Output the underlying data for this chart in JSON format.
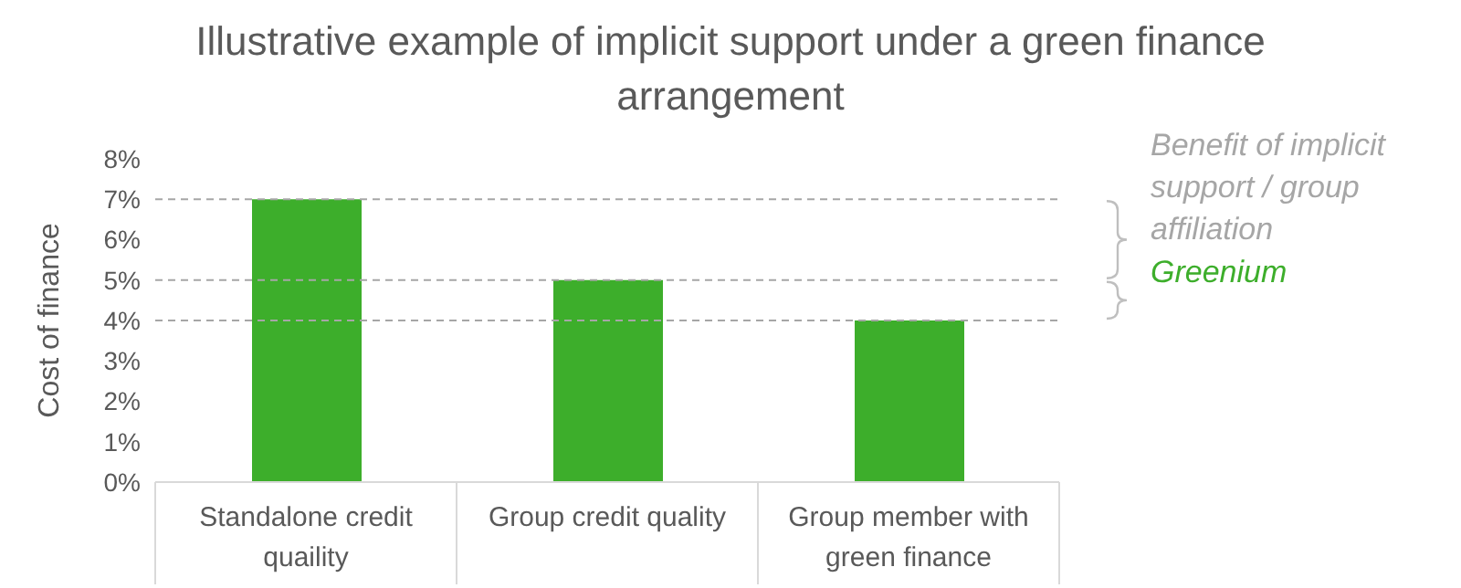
{
  "chart_data": {
    "type": "bar",
    "title": "Illustrative example of implicit support under a green finance arrangement",
    "ylabel": "Cost of finance",
    "categories": [
      "Standalone credit quaility",
      "Group credit quality",
      "Group member with green finance"
    ],
    "values": [
      7,
      5,
      4
    ],
    "color": "#3dae2b",
    "ylim": [
      0,
      8
    ],
    "yticks": [
      {
        "value": 0,
        "label": "0%"
      },
      {
        "value": 1,
        "label": "1%"
      },
      {
        "value": 2,
        "label": "2%"
      },
      {
        "value": 3,
        "label": "3%"
      },
      {
        "value": 4,
        "label": "4%"
      },
      {
        "value": 5,
        "label": "5%"
      },
      {
        "value": 6,
        "label": "6%"
      },
      {
        "value": 7,
        "label": "7%"
      },
      {
        "value": 8,
        "label": "8%"
      }
    ],
    "grid": false,
    "legend": false,
    "ref_lines": [
      {
        "axis": "y",
        "value": 7,
        "color": "#a6a6a6",
        "line_style": "dashed"
      },
      {
        "axis": "y",
        "value": 5,
        "color": "#a6a6a6",
        "line_style": "dashed"
      },
      {
        "axis": "y",
        "value": 4,
        "color": "#a6a6a6",
        "line_style": "dashed"
      }
    ],
    "annotations": [
      "Benefit of implicit support / group affiliation",
      "Greenium"
    ]
  }
}
